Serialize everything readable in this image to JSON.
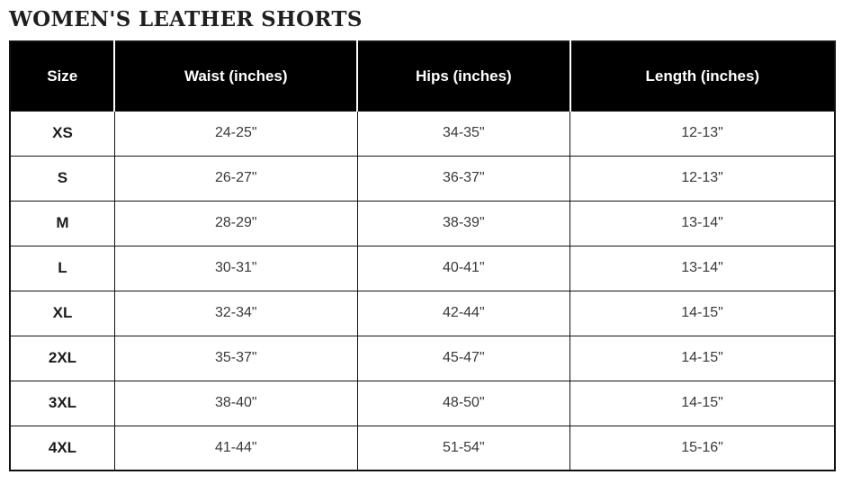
{
  "page": {
    "title": "WOMEN'S LEATHER SHORTS"
  },
  "size_chart": {
    "columns": [
      "Size",
      "Waist (inches)",
      "Hips (inches)",
      "Length (inches)"
    ],
    "rows": [
      {
        "size": "XS",
        "waist": "24-25\"",
        "hips": "34-35\"",
        "length": "12-13\""
      },
      {
        "size": "S",
        "waist": "26-27\"",
        "hips": "36-37\"",
        "length": "12-13\""
      },
      {
        "size": "M",
        "waist": "28-29\"",
        "hips": "38-39\"",
        "length": "13-14\""
      },
      {
        "size": "L",
        "waist": "30-31\"",
        "hips": "40-41\"",
        "length": "13-14\""
      },
      {
        "size": "XL",
        "waist": "32-34\"",
        "hips": "42-44\"",
        "length": "14-15\""
      },
      {
        "size": "2XL",
        "waist": "35-37\"",
        "hips": "45-47\"",
        "length": "14-15\""
      },
      {
        "size": "3XL",
        "waist": "38-40\"",
        "hips": "48-50\"",
        "length": "14-15\""
      },
      {
        "size": "4XL",
        "waist": "41-44\"",
        "hips": "51-54\"",
        "length": "15-16\""
      }
    ]
  },
  "colors": {
    "header_background": "#000000",
    "header_text": "#ffffff",
    "body_text": "#3a3a3a",
    "border": "#121212",
    "page_background": "#ffffff"
  },
  "chart_data": {
    "type": "table",
    "title": "WOMEN'S LEATHER SHORTS",
    "columns": [
      "Size",
      "Waist (inches)",
      "Hips (inches)",
      "Length (inches)"
    ],
    "rows": [
      [
        "XS",
        "24-25\"",
        "34-35\"",
        "12-13\""
      ],
      [
        "S",
        "26-27\"",
        "36-37\"",
        "12-13\""
      ],
      [
        "M",
        "28-29\"",
        "38-39\"",
        "13-14\""
      ],
      [
        "L",
        "30-31\"",
        "40-41\"",
        "13-14\""
      ],
      [
        "XL",
        "32-34\"",
        "42-44\"",
        "14-15\""
      ],
      [
        "2XL",
        "35-37\"",
        "45-47\"",
        "14-15\""
      ],
      [
        "3XL",
        "38-40\"",
        "48-50\"",
        "14-15\""
      ],
      [
        "4XL",
        "41-44\"",
        "51-54\"",
        "15-16\""
      ]
    ],
    "layout_hints": {
      "header_style": "black background, white bold text",
      "alignment": "all cells centered",
      "grid": "solid black borders on all cells"
    }
  }
}
